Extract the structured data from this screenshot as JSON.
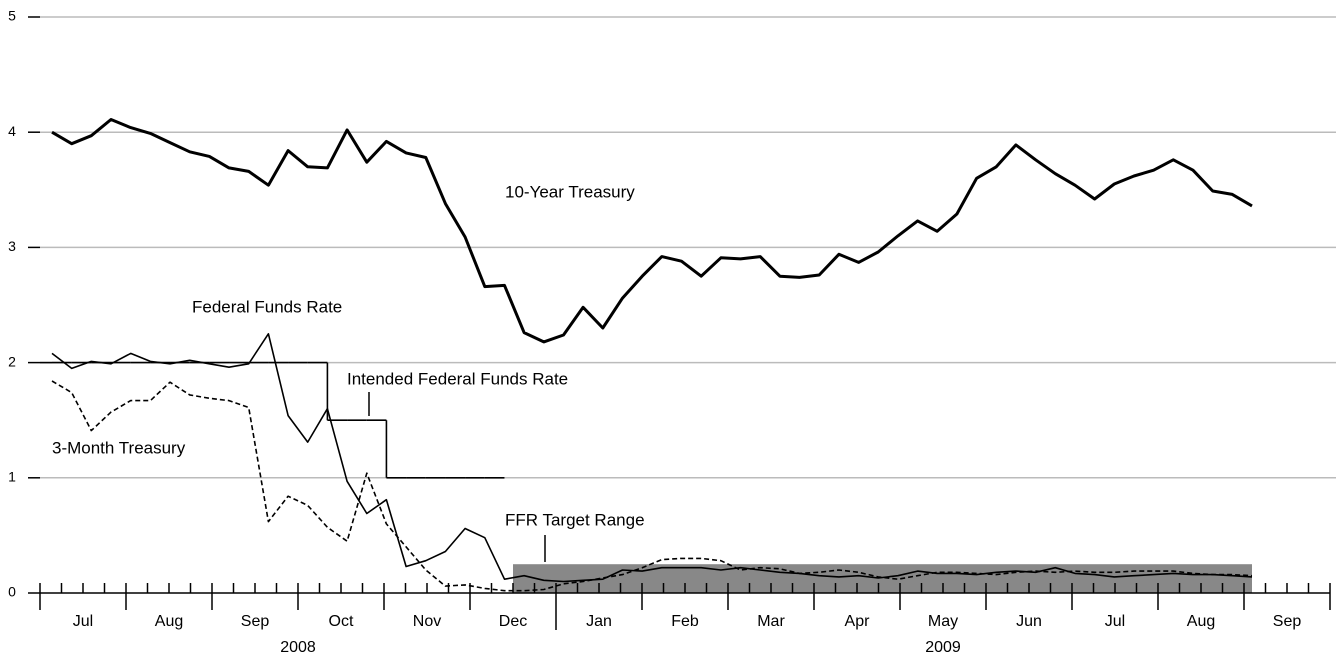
{
  "chart_data": {
    "type": "line",
    "ylim": [
      0,
      5
    ],
    "yticks": [
      0,
      1,
      2,
      3,
      4,
      5
    ],
    "grid": true,
    "months": [
      "Jul",
      "Aug",
      "Sep",
      "Oct",
      "Nov",
      "Dec",
      "Jan",
      "Feb",
      "Mar",
      "Apr",
      "May",
      "Jun",
      "Jul",
      "Aug",
      "Sep"
    ],
    "years": [
      "2008",
      "2009"
    ],
    "series": [
      {
        "name": "10-Year Treasury",
        "color": "#000000",
        "style": "thick",
        "values": [
          4.0,
          3.9,
          3.97,
          4.11,
          4.04,
          3.99,
          3.91,
          3.83,
          3.79,
          3.69,
          3.66,
          3.54,
          3.84,
          3.7,
          3.69,
          4.02,
          3.74,
          3.92,
          3.82,
          3.78,
          3.38,
          3.09,
          2.66,
          2.67,
          2.26,
          2.18,
          2.24,
          2.48,
          2.3,
          2.56,
          2.75,
          2.92,
          2.88,
          2.75,
          2.91,
          2.9,
          2.92,
          2.75,
          2.74,
          2.76,
          2.94,
          2.87,
          2.96,
          3.1,
          3.23,
          3.14,
          3.29,
          3.6,
          3.7,
          3.89,
          3.76,
          3.64,
          3.54,
          3.42,
          3.55,
          3.62,
          3.67,
          3.76,
          3.67,
          3.49,
          3.46,
          3.36
        ]
      },
      {
        "name": "Federal Funds Rate",
        "color": "#000000",
        "style": "thin",
        "values": [
          2.08,
          1.95,
          2.01,
          1.99,
          2.08,
          2.01,
          1.99,
          2.02,
          1.99,
          1.96,
          1.99,
          2.25,
          1.54,
          1.31,
          1.6,
          0.97,
          0.69,
          0.81,
          0.23,
          0.28,
          0.36,
          0.56,
          0.48,
          0.12,
          0.15,
          0.11,
          0.1,
          0.11,
          0.12,
          0.2,
          0.19,
          0.22,
          0.22,
          0.22,
          0.2,
          0.22,
          0.2,
          0.18,
          0.17,
          0.15,
          0.14,
          0.15,
          0.13,
          0.15,
          0.19,
          0.17,
          0.17,
          0.16,
          0.18,
          0.19,
          0.18,
          0.22,
          0.17,
          0.16,
          0.14,
          0.15,
          0.16,
          0.17,
          0.16,
          0.16,
          0.15,
          0.14
        ]
      },
      {
        "name": "3-Month Treasury",
        "color": "#000000",
        "style": "dashed",
        "values": [
          1.84,
          1.74,
          1.41,
          1.57,
          1.67,
          1.67,
          1.83,
          1.72,
          1.69,
          1.67,
          1.61,
          0.62,
          0.84,
          0.76,
          0.57,
          0.45,
          1.04,
          0.6,
          0.4,
          0.2,
          0.06,
          0.07,
          0.04,
          0.02,
          0.02,
          0.03,
          0.08,
          0.1,
          0.13,
          0.16,
          0.22,
          0.29,
          0.3,
          0.3,
          0.28,
          0.2,
          0.22,
          0.21,
          0.17,
          0.18,
          0.2,
          0.18,
          0.14,
          0.12,
          0.15,
          0.18,
          0.18,
          0.17,
          0.16,
          0.18,
          0.19,
          0.18,
          0.19,
          0.18,
          0.18,
          0.19,
          0.19,
          0.19,
          0.17,
          0.16,
          0.16,
          0.15
        ]
      },
      {
        "name": "Intended Federal Funds Rate",
        "color": "#000000",
        "style": "step",
        "values": [
          2,
          2,
          2,
          2,
          2,
          2,
          2,
          2,
          2,
          2,
          2,
          2,
          2,
          2,
          2,
          1.5,
          1.5,
          1.5,
          1,
          1,
          1,
          1,
          1,
          1,
          null,
          null,
          null,
          null,
          null,
          null,
          null,
          null,
          null,
          null,
          null,
          null,
          null,
          null,
          null,
          null,
          null,
          null,
          null,
          null,
          null,
          null,
          null,
          null,
          null,
          null,
          null,
          null,
          null,
          null,
          null,
          null,
          null,
          null,
          null,
          null,
          null,
          null
        ]
      }
    ],
    "band": {
      "name": "FFR Target Range",
      "color": "#888888",
      "low": 0,
      "high": 0.25
    }
  }
}
